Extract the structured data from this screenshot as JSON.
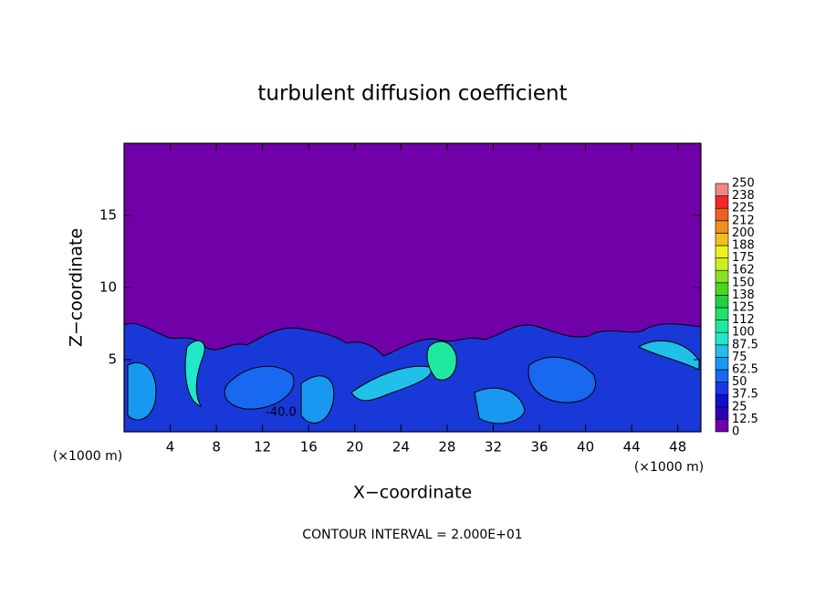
{
  "chart_data": {
    "type": "contour",
    "title": "turbulent diffusion coefficient",
    "x_label": "X−coordinate",
    "y_label": "Z−coordinate",
    "x_unit_left": "(×1000 m)",
    "x_unit_right": "(×1000 m)",
    "xlim": [
      0,
      50
    ],
    "xticks": [
      4,
      8,
      12,
      16,
      20,
      24,
      28,
      32,
      36,
      40,
      44,
      48
    ],
    "ylim": [
      0,
      20
    ],
    "yticks": [
      5,
      10,
      15
    ],
    "contour_label": "-40.0",
    "footer": "CONTOUR INTERVAL = 2.000E+01",
    "colorbar": {
      "levels": [
        0,
        12.5,
        25,
        37.5,
        50,
        62.5,
        75,
        87.5,
        100,
        {
          "value": 112.5,
          "label": "112"
        },
        125,
        {
          "value": 137.5,
          "label": "138"
        },
        150,
        {
          "value": 162.5,
          "label": "162"
        },
        175,
        {
          "value": 187.5,
          "label": "188"
        },
        200,
        {
          "value": 212.5,
          "label": "212"
        },
        225,
        {
          "value": 237.5,
          "label": "238"
        },
        250
      ],
      "colors": [
        "#7000a8",
        "#2c00b8",
        "#1010d0",
        "#1838e8",
        "#1868f0",
        "#1898f0",
        "#20c0e8",
        "#20e8c8",
        "#20e8a0",
        "#20e070",
        "#20d040",
        "#48d820",
        "#88e020",
        "#c8f020",
        "#f0f020",
        "#f0c020",
        "#f09020",
        "#f06020",
        "#f02828",
        "#f08888"
      ]
    }
  }
}
